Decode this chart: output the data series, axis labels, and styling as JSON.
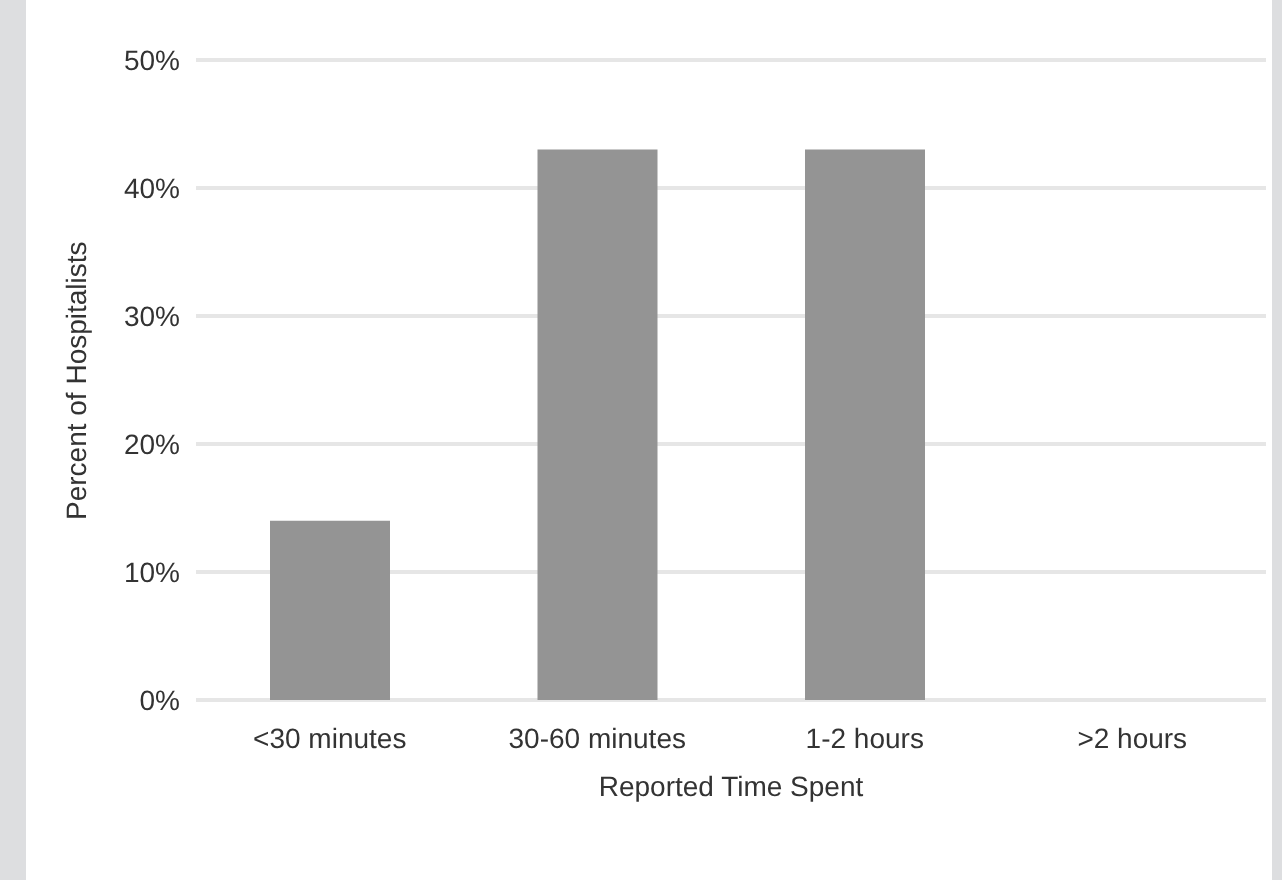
{
  "chart_data": {
    "type": "bar",
    "xlabel": "Reported Time Spent",
    "ylabel": "Percent of Hospitalists",
    "categories": [
      "<30 minutes",
      "30-60 minutes",
      "1-2 hours",
      ">2 hours"
    ],
    "values": [
      14,
      43,
      43,
      0
    ],
    "color": "#949494",
    "ylim": [
      0,
      50
    ],
    "yticks": [
      {
        "value": 0,
        "label": "0%"
      },
      {
        "value": 10,
        "label": "10%"
      },
      {
        "value": 20,
        "label": "20%"
      },
      {
        "value": 30,
        "label": "30%"
      },
      {
        "value": 40,
        "label": "40%"
      },
      {
        "value": 50,
        "label": "50%"
      }
    ],
    "grid": "y"
  }
}
